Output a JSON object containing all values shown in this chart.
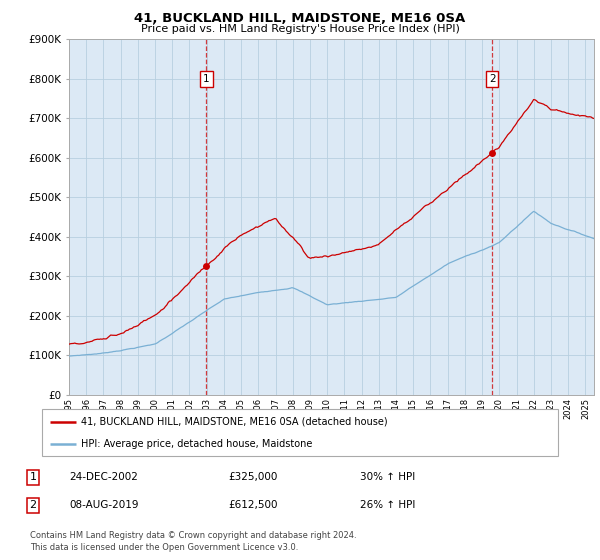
{
  "title": "41, BUCKLAND HILL, MAIDSTONE, ME16 0SA",
  "subtitle": "Price paid vs. HM Land Registry's House Price Index (HPI)",
  "ylim": [
    0,
    900000
  ],
  "yticks": [
    0,
    100000,
    200000,
    300000,
    400000,
    500000,
    600000,
    700000,
    800000,
    900000
  ],
  "xlim_start": 1995.0,
  "xlim_end": 2025.5,
  "purchase1_x": 2002.98,
  "purchase1_y": 325000,
  "purchase2_x": 2019.58,
  "purchase2_y": 612500,
  "line_color_red": "#cc0000",
  "line_color_blue": "#7ab0d4",
  "background_color": "#ffffff",
  "chart_bg_color": "#dce9f5",
  "grid_color": "#b8cfe0",
  "legend_label_red": "41, BUCKLAND HILL, MAIDSTONE, ME16 0SA (detached house)",
  "legend_label_blue": "HPI: Average price, detached house, Maidstone",
  "footer": "Contains HM Land Registry data © Crown copyright and database right 2024.\nThis data is licensed under the Open Government Licence v3.0.",
  "table_row1_num": "1",
  "table_row1_date": "24-DEC-2002",
  "table_row1_price": "£325,000",
  "table_row1_hpi": "30% ↑ HPI",
  "table_row2_num": "2",
  "table_row2_date": "08-AUG-2019",
  "table_row2_price": "£612,500",
  "table_row2_hpi": "26% ↑ HPI"
}
